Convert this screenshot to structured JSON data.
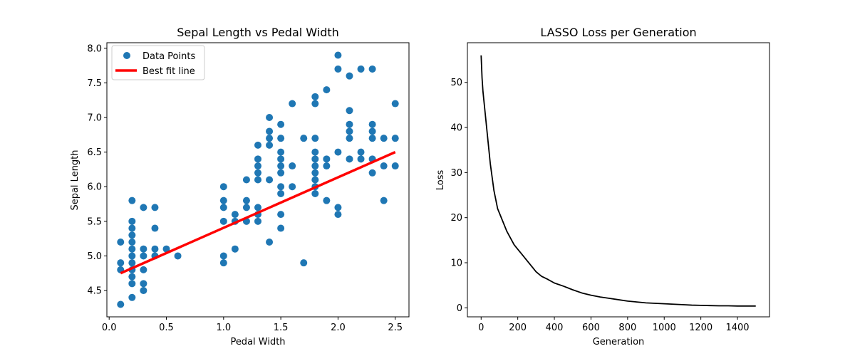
{
  "chart_data": [
    {
      "type": "scatter",
      "title": "Sepal Length vs Pedal Width",
      "xlabel": "Pedal Width",
      "ylabel": "Sepal Length",
      "xlim": [
        -0.02,
        2.62
      ],
      "ylim": [
        4.12,
        8.08
      ],
      "xticks": [
        "0.0",
        "0.5",
        "1.0",
        "1.5",
        "2.0",
        "2.5"
      ],
      "yticks": [
        "4.5",
        "5.0",
        "5.5",
        "6.0",
        "6.5",
        "7.0",
        "7.5",
        "8.0"
      ],
      "legend": {
        "position": "upper-left",
        "entries": [
          "Data Points",
          "Best fit line"
        ]
      },
      "colors": {
        "points": "#1f77b4",
        "fit": "#ff0000"
      },
      "series": [
        {
          "name": "Data Points",
          "kind": "scatter",
          "points": [
            [
              0.1,
              4.3
            ],
            [
              0.1,
              4.8
            ],
            [
              0.1,
              4.9
            ],
            [
              0.1,
              5.2
            ],
            [
              0.2,
              4.4
            ],
            [
              0.2,
              4.6
            ],
            [
              0.2,
              4.7
            ],
            [
              0.2,
              4.8
            ],
            [
              0.2,
              4.9
            ],
            [
              0.2,
              5.0
            ],
            [
              0.2,
              5.1
            ],
            [
              0.2,
              5.2
            ],
            [
              0.2,
              5.3
            ],
            [
              0.2,
              5.4
            ],
            [
              0.2,
              5.5
            ],
            [
              0.2,
              5.8
            ],
            [
              0.3,
              4.5
            ],
            [
              0.3,
              4.6
            ],
            [
              0.3,
              4.8
            ],
            [
              0.3,
              5.0
            ],
            [
              0.3,
              5.1
            ],
            [
              0.3,
              5.7
            ],
            [
              0.4,
              5.0
            ],
            [
              0.4,
              5.1
            ],
            [
              0.4,
              5.4
            ],
            [
              0.4,
              5.7
            ],
            [
              0.5,
              5.1
            ],
            [
              0.6,
              5.0
            ],
            [
              1.0,
              4.9
            ],
            [
              1.0,
              5.0
            ],
            [
              1.0,
              5.5
            ],
            [
              1.0,
              5.7
            ],
            [
              1.0,
              5.8
            ],
            [
              1.0,
              6.0
            ],
            [
              1.1,
              5.1
            ],
            [
              1.1,
              5.5
            ],
            [
              1.1,
              5.6
            ],
            [
              1.2,
              5.5
            ],
            [
              1.2,
              5.7
            ],
            [
              1.2,
              5.8
            ],
            [
              1.2,
              6.1
            ],
            [
              1.3,
              5.5
            ],
            [
              1.3,
              5.6
            ],
            [
              1.3,
              5.7
            ],
            [
              1.3,
              6.1
            ],
            [
              1.3,
              6.2
            ],
            [
              1.3,
              6.3
            ],
            [
              1.3,
              6.4
            ],
            [
              1.3,
              6.6
            ],
            [
              1.4,
              5.2
            ],
            [
              1.4,
              6.1
            ],
            [
              1.4,
              6.6
            ],
            [
              1.4,
              6.7
            ],
            [
              1.4,
              6.8
            ],
            [
              1.4,
              7.0
            ],
            [
              1.5,
              5.4
            ],
            [
              1.5,
              5.6
            ],
            [
              1.5,
              5.9
            ],
            [
              1.5,
              6.0
            ],
            [
              1.5,
              6.2
            ],
            [
              1.5,
              6.3
            ],
            [
              1.5,
              6.4
            ],
            [
              1.5,
              6.5
            ],
            [
              1.5,
              6.7
            ],
            [
              1.5,
              6.9
            ],
            [
              1.6,
              6.0
            ],
            [
              1.6,
              6.3
            ],
            [
              1.6,
              7.2
            ],
            [
              1.7,
              4.9
            ],
            [
              1.7,
              6.7
            ],
            [
              1.8,
              5.9
            ],
            [
              1.8,
              6.0
            ],
            [
              1.8,
              6.1
            ],
            [
              1.8,
              6.2
            ],
            [
              1.8,
              6.3
            ],
            [
              1.8,
              6.4
            ],
            [
              1.8,
              6.5
            ],
            [
              1.8,
              6.7
            ],
            [
              1.8,
              7.2
            ],
            [
              1.8,
              7.3
            ],
            [
              1.9,
              5.8
            ],
            [
              1.9,
              6.3
            ],
            [
              1.9,
              6.4
            ],
            [
              1.9,
              7.4
            ],
            [
              2.0,
              5.6
            ],
            [
              2.0,
              5.7
            ],
            [
              2.0,
              6.5
            ],
            [
              2.0,
              7.7
            ],
            [
              2.0,
              7.9
            ],
            [
              2.1,
              6.4
            ],
            [
              2.1,
              6.7
            ],
            [
              2.1,
              6.8
            ],
            [
              2.1,
              6.9
            ],
            [
              2.1,
              7.1
            ],
            [
              2.1,
              7.6
            ],
            [
              2.2,
              6.4
            ],
            [
              2.2,
              6.5
            ],
            [
              2.2,
              7.7
            ],
            [
              2.3,
              6.2
            ],
            [
              2.3,
              6.4
            ],
            [
              2.3,
              6.7
            ],
            [
              2.3,
              6.8
            ],
            [
              2.3,
              6.9
            ],
            [
              2.3,
              7.7
            ],
            [
              2.4,
              5.8
            ],
            [
              2.4,
              6.3
            ],
            [
              2.4,
              6.7
            ],
            [
              2.5,
              6.3
            ],
            [
              2.5,
              6.7
            ],
            [
              2.5,
              7.2
            ]
          ]
        },
        {
          "name": "Best fit line",
          "kind": "line",
          "points": [
            [
              0.1,
              4.75
            ],
            [
              2.5,
              6.5
            ]
          ]
        }
      ]
    },
    {
      "type": "line",
      "title": "LASSO Loss per Generation",
      "xlabel": "Generation",
      "ylabel": "Loss",
      "xlim": [
        -75,
        1575
      ],
      "ylim": [
        -2.0,
        58.8
      ],
      "xticks": [
        "0",
        "200",
        "400",
        "600",
        "800",
        "1000",
        "1200",
        "1400"
      ],
      "yticks": [
        "0",
        "10",
        "20",
        "30",
        "40",
        "50"
      ],
      "colors": {
        "line": "#000000"
      },
      "series": [
        {
          "kind": "line",
          "x": [
            0,
            5,
            10,
            20,
            30,
            40,
            50,
            60,
            70,
            80,
            90,
            100,
            120,
            140,
            160,
            180,
            200,
            220,
            250,
            280,
            300,
            330,
            360,
            400,
            450,
            500,
            550,
            600,
            650,
            700,
            750,
            800,
            850,
            900,
            950,
            1000,
            1050,
            1100,
            1150,
            1200,
            1250,
            1300,
            1350,
            1400,
            1450,
            1500
          ],
          "values": [
            56,
            51,
            48,
            44,
            40,
            36,
            32,
            29,
            26,
            24,
            22,
            21,
            19,
            17,
            15.5,
            14,
            13,
            12,
            10.5,
            9,
            8,
            7,
            6.4,
            5.5,
            4.8,
            4,
            3.3,
            2.8,
            2.4,
            2.1,
            1.8,
            1.5,
            1.3,
            1.1,
            1.0,
            0.9,
            0.8,
            0.7,
            0.6,
            0.55,
            0.5,
            0.45,
            0.45,
            0.4,
            0.4,
            0.4
          ]
        }
      ]
    }
  ]
}
